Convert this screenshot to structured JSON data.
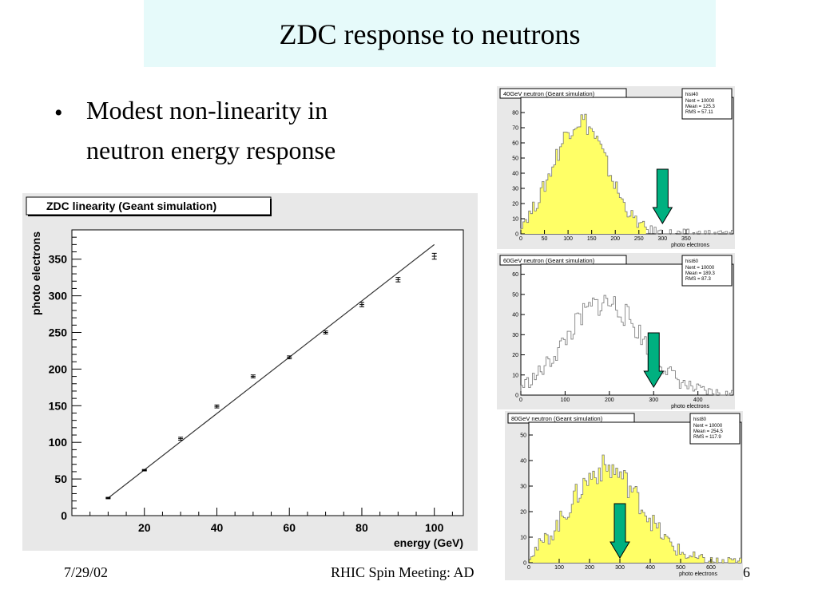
{
  "slide": {
    "title": "ZDC response to neutrons",
    "bullet": [
      "Modest non-linearity in",
      "neutron energy response"
    ],
    "footer_date": "7/29/02",
    "footer_meeting": "RHIC Spin Meeting: AD",
    "footer_page_fragment": "6"
  },
  "colors": {
    "title_bg": "#e6fafa",
    "arrow": "#00b080",
    "hist_fill": "#ffff66",
    "panel_bg": "#e8e8e8"
  },
  "chart_data": [
    {
      "type": "scatter",
      "title": "ZDC linearity (Geant simulation)",
      "xlabel": "energy (GeV)",
      "ylabel": "photo electrons",
      "xlim": [
        0,
        108
      ],
      "ylim": [
        0,
        390
      ],
      "xticks": [
        20,
        40,
        60,
        80,
        100
      ],
      "yticks": [
        0,
        50,
        100,
        150,
        200,
        250,
        300,
        350
      ],
      "points": [
        {
          "x": 10,
          "y": 24,
          "err": 1
        },
        {
          "x": 20,
          "y": 62,
          "err": 1
        },
        {
          "x": 30,
          "y": 105,
          "err": 2
        },
        {
          "x": 40,
          "y": 149,
          "err": 2
        },
        {
          "x": 50,
          "y": 190,
          "err": 2
        },
        {
          "x": 60,
          "y": 216,
          "err": 2
        },
        {
          "x": 70,
          "y": 250,
          "err": 2
        },
        {
          "x": 80,
          "y": 288,
          "err": 3
        },
        {
          "x": 90,
          "y": 322,
          "err": 3
        },
        {
          "x": 100,
          "y": 354,
          "err": 4
        }
      ],
      "fit_line": [
        {
          "x": 10,
          "y": 24
        },
        {
          "x": 100,
          "y": 370
        }
      ]
    },
    {
      "type": "area",
      "title": "40GeV neutron (Geant simulation)",
      "xlabel": "photo electrons",
      "stats": {
        "name": "hist40",
        "lines": [
          "Nent = 10000",
          "Mean  =  125.3",
          "RMS   =  57.11"
        ]
      },
      "xlim": [
        0,
        450
      ],
      "ylim": [
        0,
        90
      ],
      "xticks": [
        0,
        50,
        100,
        150,
        200,
        250,
        300,
        350
      ],
      "yticks": [
        0,
        10,
        20,
        30,
        40,
        50,
        60,
        70,
        80
      ],
      "mean": 125.3,
      "rms": 57.11,
      "peak": 75,
      "fill_to": 265,
      "noise": 7,
      "arrow_x": 300
    },
    {
      "type": "area",
      "title": "60GeV neutron (Geant simulation)",
      "xlabel": "photo electrons",
      "stats": {
        "name": "hist60",
        "lines": [
          "Nent = 10000",
          "Mean  =  189.3",
          "RMS   =  87.3"
        ]
      },
      "xlim": [
        0,
        480
      ],
      "ylim": [
        0,
        65
      ],
      "xticks": [
        0,
        100,
        200,
        300,
        400
      ],
      "yticks": [
        0,
        10,
        20,
        30,
        40,
        50,
        60
      ],
      "mean": 189.3,
      "rms": 87.3,
      "peak": 46,
      "fill_to": 0,
      "noise": 6,
      "arrow_x": 300
    },
    {
      "type": "area",
      "title": "80GeV neutron (Geant simulation)",
      "xlabel": "photo electrons",
      "stats": {
        "name": "hist80",
        "lines": [
          "Nent = 10000",
          "Mean  =  254.5",
          "RMS   =  117.9"
        ]
      },
      "xlim": [
        0,
        700
      ],
      "ylim": [
        0,
        55
      ],
      "xticks": [
        0,
        100,
        200,
        300,
        400,
        500,
        600
      ],
      "yticks": [
        0,
        10,
        20,
        30,
        40,
        50
      ],
      "mean": 254.5,
      "rms": 117.9,
      "peak": 37,
      "fill_to": 700,
      "noise": 5,
      "arrow_x": 300
    }
  ]
}
